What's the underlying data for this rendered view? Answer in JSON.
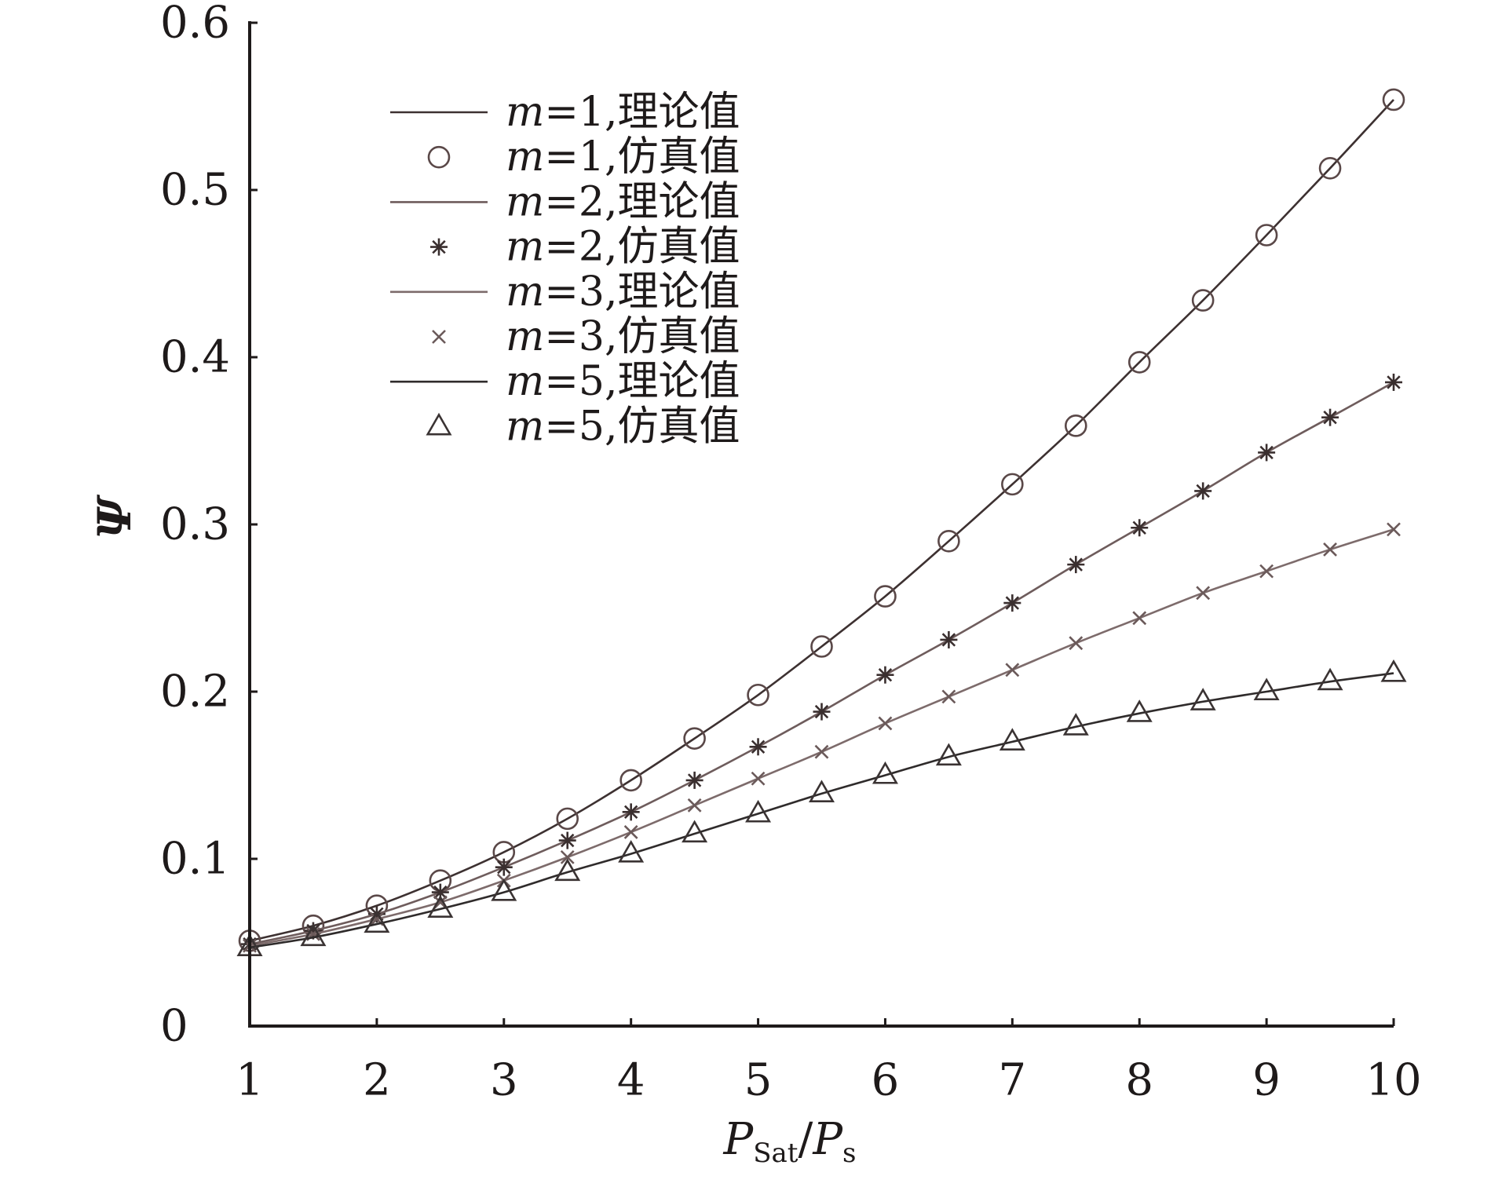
{
  "chart_data": {
    "type": "line",
    "x": [
      1,
      1.5,
      2,
      2.5,
      3,
      3.5,
      4,
      4.5,
      5,
      5.5,
      6,
      6.5,
      7,
      7.5,
      8,
      8.5,
      9,
      9.5,
      10
    ],
    "xlim": [
      1,
      10
    ],
    "ylim": [
      0,
      0.6
    ],
    "xticks": [
      1,
      2,
      3,
      4,
      5,
      6,
      7,
      8,
      9,
      10
    ],
    "xtick_labels": [
      "1",
      "2",
      "3",
      "4",
      "5",
      "6",
      "7",
      "8",
      "9",
      "10"
    ],
    "yticks": [
      0,
      0.1,
      0.2,
      0.3,
      0.4,
      0.5,
      0.6
    ],
    "ytick_labels": [
      "0",
      "0.1",
      "0.2",
      "0.3",
      "0.4",
      "0.5",
      "0.6"
    ],
    "xlabel": {
      "p1": "P",
      "sub1": "Sat",
      "sep": "/",
      "p2": "P",
      "sub2": "s"
    },
    "ylabel": "Ψ",
    "legend": "top-left",
    "grid": false,
    "series": [
      {
        "name": "m=1,理论值",
        "type": "line",
        "color": "#3d3131",
        "values": [
          0.051,
          0.06,
          0.072,
          0.087,
          0.104,
          0.124,
          0.147,
          0.172,
          0.198,
          0.227,
          0.257,
          0.29,
          0.324,
          0.359,
          0.397,
          0.434,
          0.473,
          0.513,
          0.554
        ]
      },
      {
        "name": "m=1,仿真值",
        "type": "scatter",
        "marker": "circle",
        "color": "#5a4848",
        "values": [
          0.051,
          0.06,
          0.072,
          0.087,
          0.104,
          0.124,
          0.147,
          0.172,
          0.198,
          0.227,
          0.257,
          0.29,
          0.324,
          0.359,
          0.397,
          0.434,
          0.473,
          0.513,
          0.554
        ]
      },
      {
        "name": "m=2,理论值",
        "type": "line",
        "color": "#6e5c5c",
        "values": [
          0.049,
          0.057,
          0.067,
          0.08,
          0.095,
          0.111,
          0.128,
          0.147,
          0.167,
          0.188,
          0.21,
          0.231,
          0.253,
          0.276,
          0.298,
          0.32,
          0.343,
          0.364,
          0.385
        ]
      },
      {
        "name": "m=2,仿真值",
        "type": "scatter",
        "marker": "star",
        "color": "#3a2f2f",
        "values": [
          0.049,
          0.057,
          0.067,
          0.08,
          0.095,
          0.111,
          0.128,
          0.147,
          0.167,
          0.188,
          0.21,
          0.231,
          0.253,
          0.276,
          0.298,
          0.32,
          0.343,
          0.364,
          0.385
        ]
      },
      {
        "name": "m=3,理论值",
        "type": "line",
        "color": "#7d6b6b",
        "values": [
          0.048,
          0.055,
          0.064,
          0.074,
          0.087,
          0.101,
          0.116,
          0.132,
          0.148,
          0.164,
          0.181,
          0.197,
          0.213,
          0.229,
          0.244,
          0.259,
          0.272,
          0.285,
          0.297
        ]
      },
      {
        "name": "m=3,仿真值",
        "type": "scatter",
        "marker": "x",
        "color": "#6b5a5a",
        "values": [
          0.048,
          0.055,
          0.064,
          0.074,
          0.087,
          0.101,
          0.116,
          0.132,
          0.148,
          0.164,
          0.181,
          0.197,
          0.213,
          0.229,
          0.244,
          0.259,
          0.272,
          0.285,
          0.297
        ]
      },
      {
        "name": "m=5,理论值",
        "type": "line",
        "color": "#2f2b2b",
        "values": [
          0.047,
          0.053,
          0.061,
          0.07,
          0.08,
          0.092,
          0.103,
          0.115,
          0.127,
          0.139,
          0.15,
          0.161,
          0.17,
          0.179,
          0.187,
          0.194,
          0.2,
          0.206,
          0.211
        ]
      },
      {
        "name": "m=5,仿真值",
        "type": "scatter",
        "marker": "triangle",
        "color": "#3a3333",
        "values": [
          0.047,
          0.053,
          0.061,
          0.07,
          0.08,
          0.092,
          0.103,
          0.115,
          0.127,
          0.139,
          0.15,
          0.161,
          0.17,
          0.179,
          0.187,
          0.194,
          0.2,
          0.206,
          0.211
        ]
      }
    ]
  }
}
